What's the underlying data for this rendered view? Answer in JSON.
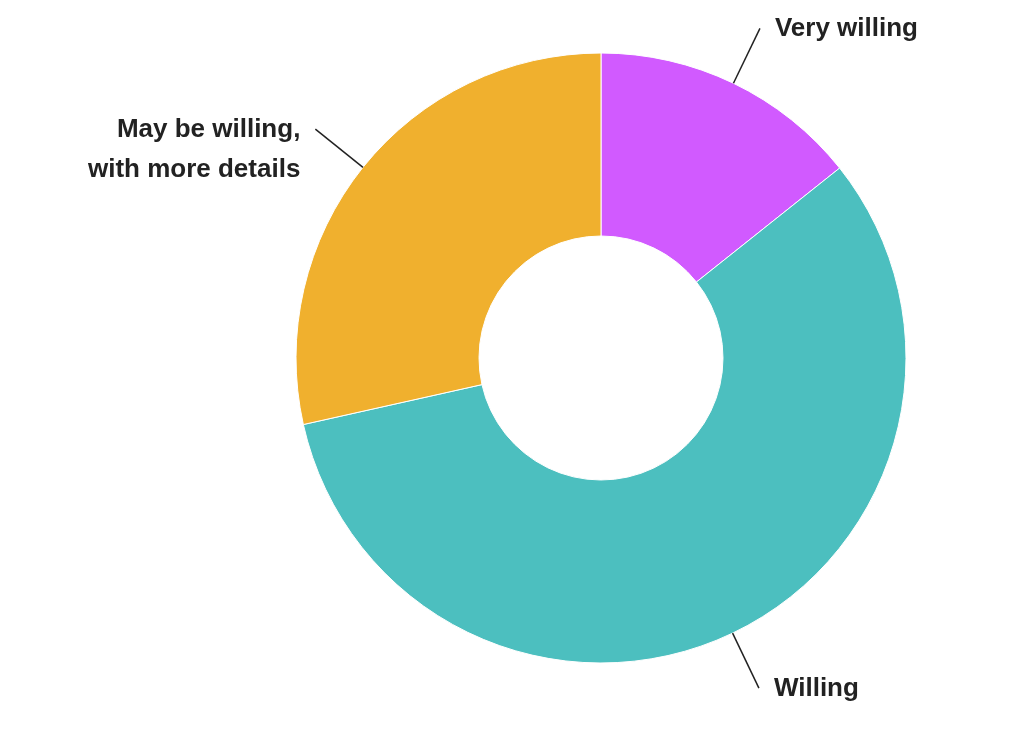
{
  "chart_data": {
    "type": "donut",
    "categories": [
      "Very willing",
      "Willing",
      "May be willing,\nwith more details"
    ],
    "values": [
      14.3,
      57.2,
      28.5
    ],
    "colors": [
      "#d15aff",
      "#4cbfbf",
      "#f0b02e"
    ],
    "legend": false
  }
}
